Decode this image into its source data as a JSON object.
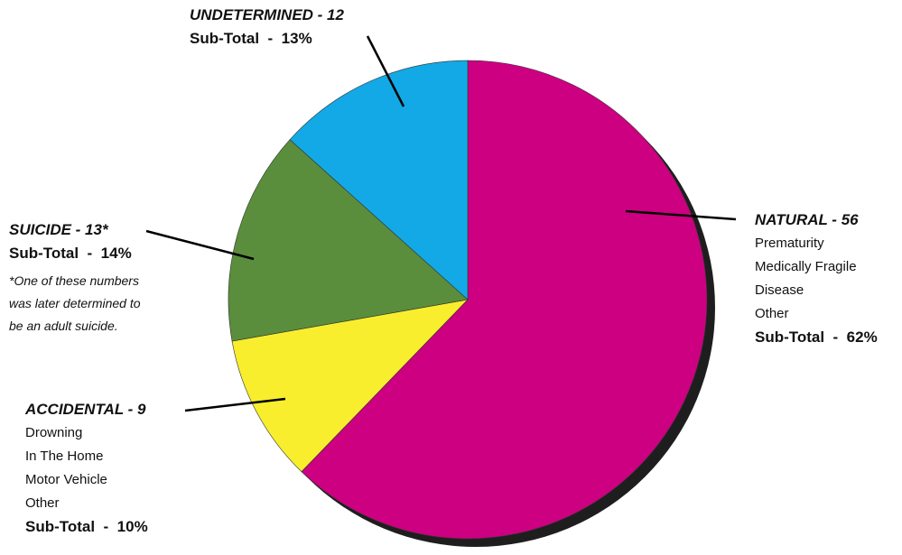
{
  "chart_data": {
    "type": "pie",
    "slices": [
      {
        "label": "NATURAL",
        "value": 56,
        "percent": 62,
        "color": "#cc0080",
        "header": "NATURAL - 56",
        "items": [
          "Prematurity",
          "Medically Fragile",
          "Disease",
          "Other"
        ],
        "subtotal": "Sub-Total  -  62%"
      },
      {
        "label": "ACCIDENTAL",
        "value": 9,
        "percent": 10,
        "color": "#f9ee2d",
        "header": "ACCIDENTAL - 9",
        "items": [
          "Drowning",
          "In The Home",
          "Motor Vehicle",
          "Other"
        ],
        "subtotal": "Sub-Total  -  10%"
      },
      {
        "label": "SUICIDE",
        "value": 13,
        "percent": 14,
        "color": "#5a8e3c",
        "header": "SUICIDE - 13*",
        "items": [],
        "subtotal": "Sub-Total  -  14%",
        "note": [
          "*One of these numbers",
          "was later determined to",
          "be an adult suicide."
        ]
      },
      {
        "label": "UNDETERMINED",
        "value": 12,
        "percent": 13,
        "color": "#12a9e6",
        "header": "UNDETERMINED - 12",
        "items": [],
        "subtotal": "Sub-Total  -  13%"
      }
    ],
    "start": "12 o'clock",
    "direction": "clockwise",
    "legend": "callout labels"
  },
  "colors": {
    "shadow": "#1e1e1e",
    "edge": "#333333",
    "leader": "#000000"
  }
}
